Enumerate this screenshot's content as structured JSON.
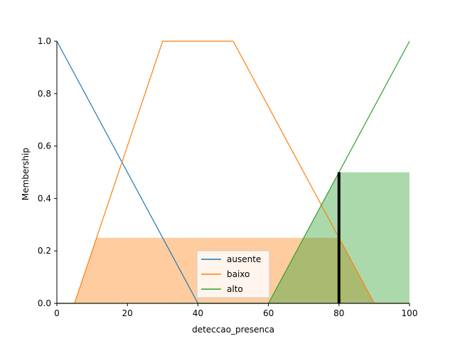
{
  "chart_data": {
    "type": "area",
    "title": "",
    "xlabel": "deteccao_presenca",
    "ylabel": "Membership",
    "xlim": [
      0,
      100
    ],
    "ylim": [
      0,
      1.0
    ],
    "xticks": [
      0,
      20,
      40,
      60,
      80,
      100
    ],
    "xtick_labels": [
      "0",
      "20",
      "40",
      "60",
      "80",
      "100"
    ],
    "yticks": [
      0.0,
      0.2,
      0.4,
      0.6,
      0.8,
      1.0
    ],
    "ytick_labels": [
      "0.0",
      "0.2",
      "0.4",
      "0.6",
      "0.8",
      "1.0"
    ],
    "grid": false,
    "legend_position": "lower center",
    "series": [
      {
        "name": "ausente",
        "color": "#1f77b4",
        "x": [
          0,
          40,
          100
        ],
        "y": [
          1.0,
          0.0,
          0.0
        ]
      },
      {
        "name": "baixo",
        "color": "#ff7f0e",
        "x": [
          0,
          5,
          30,
          50,
          90,
          100
        ],
        "y": [
          0.0,
          0.0,
          1.0,
          1.0,
          0.0,
          0.0
        ]
      },
      {
        "name": "alto",
        "color": "#2ca02c",
        "x": [
          0,
          60,
          100
        ],
        "y": [
          0.0,
          0.0,
          1.0
        ]
      }
    ],
    "activation_fills": [
      {
        "series": "ausente",
        "color": "#1f77b4",
        "level": 0.0
      },
      {
        "series": "baixo",
        "color": "#ff7f0e",
        "level": 0.25
      },
      {
        "series": "alto",
        "color": "#2ca02c",
        "level": 0.5
      }
    ],
    "marker": {
      "x": 80,
      "y": 0.5,
      "color": "#000000"
    }
  }
}
